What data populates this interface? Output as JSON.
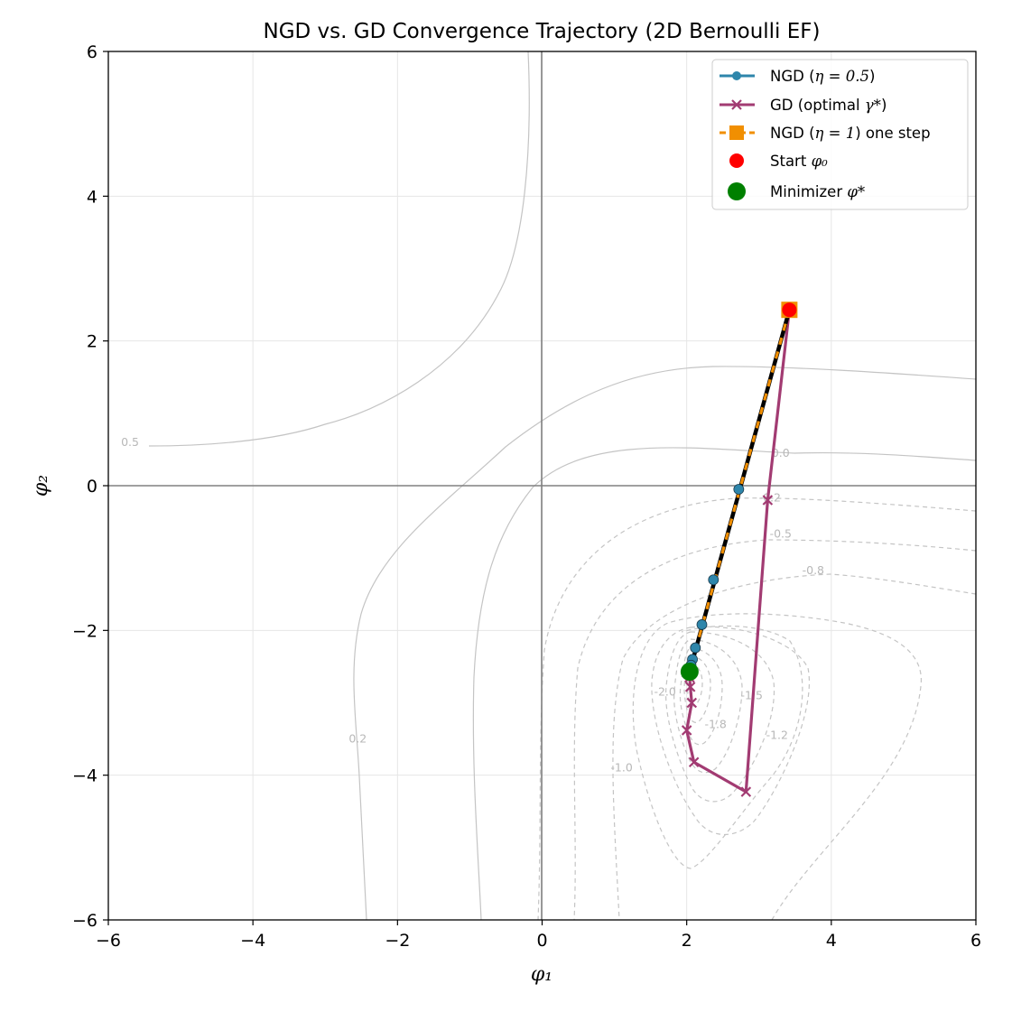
{
  "chart_data": {
    "type": "line",
    "title": "NGD vs. GD Convergence Trajectory (2D Bernoulli EF)",
    "xlabel": "φ₁",
    "ylabel": "φ₂",
    "xlim": [
      -6,
      6
    ],
    "ylim": [
      -6,
      6
    ],
    "xticks": [
      -6,
      -4,
      -2,
      0,
      2,
      4,
      6
    ],
    "yticks": [
      -6,
      -4,
      -2,
      0,
      2,
      4,
      6
    ],
    "grid": true,
    "legend_position": "top-right",
    "colors": {
      "ngd": "#2e86ab",
      "gd": "#a23b72",
      "ngd_one_step": "#f18f01",
      "start": "#ff0000",
      "minimizer": "#008000",
      "contour": "#c4c4c4",
      "axis_line": "#808080"
    },
    "series": [
      {
        "name": "NGD (η = 0.5)",
        "label_main": "NGD (",
        "label_math": "η = 0.5",
        "label_tail": ")",
        "marker": "circle",
        "x": [
          3.42,
          2.72,
          2.37,
          2.21,
          2.12,
          2.08,
          2.06,
          2.05
        ],
        "y": [
          2.43,
          -0.05,
          -1.3,
          -1.92,
          -2.24,
          -2.4,
          -2.48,
          -2.52
        ]
      },
      {
        "name": "GD (optimal γ*)",
        "label_main": "GD (optimal ",
        "label_math": "γ*",
        "label_tail": ")",
        "marker": "x",
        "x": [
          3.42,
          3.12,
          2.82,
          2.1,
          2.0,
          2.07,
          2.05,
          2.04,
          2.05
        ],
        "y": [
          2.43,
          -0.2,
          -4.23,
          -3.82,
          -3.38,
          -3.0,
          -2.78,
          -2.65,
          -2.57
        ]
      },
      {
        "name": "NGD (η = 1) one step",
        "label_main": "NGD (",
        "label_math": "η = 1",
        "label_tail": ") one step",
        "marker": "square",
        "x": [
          3.42,
          2.04
        ],
        "y": [
          2.43,
          -2.57
        ]
      }
    ],
    "points": [
      {
        "name": "Start φ₀",
        "label_main": "Start ",
        "label_math": "φ₀",
        "x": 3.42,
        "y": 2.43
      },
      {
        "name": "Minimizer φ*",
        "label_main": "Minimizer ",
        "label_math": "φ*",
        "x": 2.04,
        "y": -2.57
      }
    ],
    "contour_labels": [
      {
        "text": "0.5",
        "x": -5.7,
        "y": 0.55
      },
      {
        "text": "0.2",
        "x": -2.55,
        "y": -3.55
      },
      {
        "text": "0.0",
        "x": 3.3,
        "y": 0.4
      },
      {
        "text": "-0.2",
        "x": 3.15,
        "y": -0.22
      },
      {
        "text": "-0.5",
        "x": 3.3,
        "y": -0.72
      },
      {
        "text": "-0.8",
        "x": 3.75,
        "y": -1.22
      },
      {
        "text": "-1.0",
        "x": 1.1,
        "y": -3.95
      },
      {
        "text": "-1.2",
        "x": 3.25,
        "y": -3.5
      },
      {
        "text": "-1.5",
        "x": 2.9,
        "y": -2.95
      },
      {
        "text": "-1.8",
        "x": 2.4,
        "y": -3.35
      },
      {
        "text": "-2.0",
        "x": 1.7,
        "y": -2.9
      }
    ]
  }
}
